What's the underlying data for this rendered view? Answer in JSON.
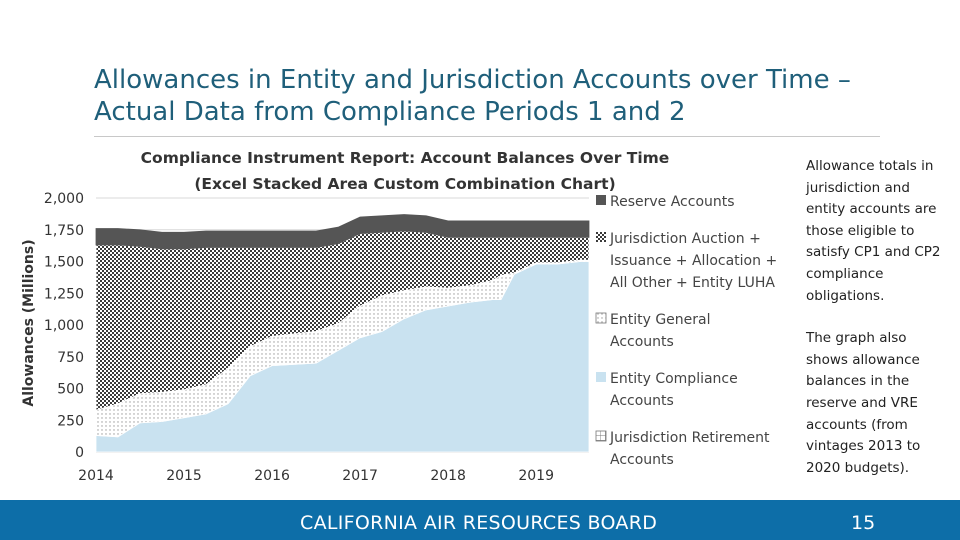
{
  "slide": {
    "title_line1": "Allowances in Entity and Jurisdiction Accounts over Time –",
    "title_line2": "Actual Data from Compliance Periods 1 and 2",
    "notes": [
      "Allowance totals in jurisdiction and entity accounts are those eligible to satisfy CP1 and CP2 compliance obligations.",
      "The graph also shows allowance balances in the reserve and VRE accounts (from vintages 2013 to 2020 budgets)."
    ],
    "footer_org": "CALIFORNIA AIR RESOURCES BOARD",
    "page_number": "15"
  },
  "chart_data": {
    "type": "area",
    "stacked": true,
    "title_line1": "Compliance Instrument Report: Account Balances Over Time",
    "title_line2": "(Excel Stacked Area Custom Combination Chart)",
    "ylabel": "Allowances (Millions)",
    "xlabel": "",
    "ylim": [
      0,
      2000
    ],
    "yticks": [
      0,
      250,
      500,
      750,
      1000,
      1250,
      1500,
      1750,
      2000
    ],
    "ytick_labels": [
      "0",
      "250",
      "500",
      "750",
      "1,000",
      "1,250",
      "1,500",
      "1,750",
      "2,000"
    ],
    "xlim": [
      2014,
      2019.6
    ],
    "xticks": [
      2014,
      2015,
      2016,
      2017,
      2018,
      2019
    ],
    "xtick_labels": [
      "2014",
      "2015",
      "2016",
      "2017",
      "2018",
      "2019"
    ],
    "x": [
      2014,
      2014.25,
      2014.5,
      2014.75,
      2015,
      2015.25,
      2015.5,
      2015.75,
      2016,
      2016.25,
      2016.5,
      2016.75,
      2017,
      2017.25,
      2017.5,
      2017.75,
      2018,
      2018.25,
      2018.5,
      2018.6,
      2018.75,
      2019,
      2019.25,
      2019.5,
      2019.6
    ],
    "series": [
      {
        "name": "Jurisdiction Retirement Accounts",
        "values": [
          0,
          0,
          0,
          0,
          0,
          0,
          0,
          0,
          0,
          0,
          0,
          0,
          0,
          0,
          0,
          0,
          0,
          0,
          0,
          0,
          0,
          0,
          0,
          0,
          0
        ]
      },
      {
        "name": "Entity Compliance Accounts",
        "values": [
          130,
          120,
          230,
          240,
          270,
          300,
          380,
          600,
          680,
          690,
          700,
          800,
          900,
          950,
          1050,
          1120,
          1150,
          1180,
          1200,
          1200,
          1400,
          1480,
          1480,
          1500,
          1500
        ]
      },
      {
        "name": "Entity General Accounts",
        "values": [
          200,
          260,
          230,
          230,
          220,
          230,
          280,
          230,
          230,
          240,
          250,
          210,
          250,
          280,
          220,
          180,
          140,
          130,
          150,
          190,
          10,
          10,
          10,
          10,
          10
        ]
      },
      {
        "name": "Jurisdiction Auction + Issuance + Allocation + All Other + Entity LUHA",
        "values": [
          1300,
          1250,
          1160,
          1130,
          1110,
          1080,
          950,
          780,
          700,
          680,
          660,
          630,
          570,
          500,
          470,
          430,
          400,
          380,
          340,
          300,
          280,
          200,
          200,
          180,
          180
        ]
      },
      {
        "name": "Reserve Accounts",
        "values": [
          130,
          130,
          130,
          130,
          130,
          130,
          130,
          130,
          130,
          130,
          130,
          130,
          130,
          130,
          130,
          130,
          130,
          130,
          130,
          130,
          130,
          130,
          130,
          130,
          130
        ]
      }
    ],
    "legend_position": "right",
    "legend": [
      {
        "lines": [
          "Reserve Accounts"
        ],
        "fill": "#555555"
      },
      {
        "lines": [
          "Jurisdiction Auction +",
          "Issuance + Allocation +",
          "All Other + Entity LUHA"
        ],
        "fill": "url(#pat-checker)"
      },
      {
        "lines": [
          "Entity General",
          "Accounts"
        ],
        "fill": "url(#pat-dots)"
      },
      {
        "lines": [
          "Entity Compliance",
          "Accounts"
        ],
        "fill": "#c9e2f0"
      },
      {
        "lines": [
          "Jurisdiction Retirement",
          "Accounts"
        ],
        "fill": "url(#pat-grid)"
      }
    ],
    "colors": {
      "reserve": "#555555",
      "compliance": "#c9e2f0",
      "dots": "#9a9a9a",
      "grid_line": "#7a7a7a",
      "checker": "#3a3a3a"
    }
  }
}
